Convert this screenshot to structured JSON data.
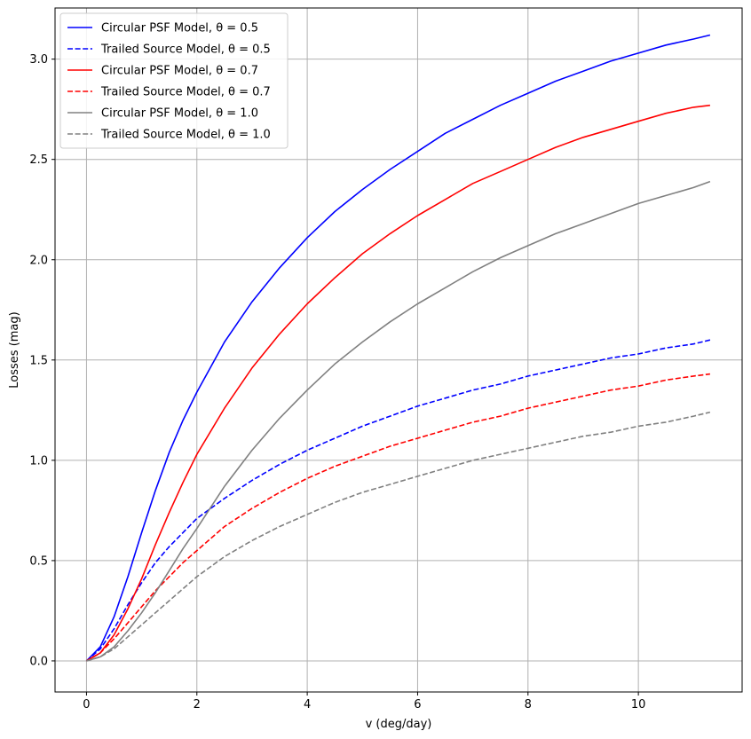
{
  "chart_data": {
    "type": "line",
    "xlabel": "v (deg/day)",
    "ylabel": "Losses (mag)",
    "xlim": [
      -0.57,
      11.88
    ],
    "ylim": [
      -0.155,
      3.255
    ],
    "xticks": [
      0,
      2,
      4,
      6,
      8,
      10
    ],
    "yticks": [
      0.0,
      0.5,
      1.0,
      1.5,
      2.0,
      2.5,
      3.0
    ],
    "xtick_labels": [
      "0",
      "2",
      "4",
      "6",
      "8",
      "10"
    ],
    "ytick_labels": [
      "0.0",
      "0.5",
      "1.0",
      "1.5",
      "2.0",
      "2.5",
      "3.0"
    ],
    "grid": true,
    "legend_position": "top-left",
    "x": [
      0,
      0.25,
      0.5,
      0.75,
      1,
      1.25,
      1.5,
      1.75,
      2,
      2.5,
      3,
      3.5,
      4,
      4.5,
      5,
      5.5,
      6,
      6.5,
      7,
      7.5,
      8,
      8.5,
      9,
      9.5,
      10,
      10.5,
      11,
      11.3
    ],
    "series": [
      {
        "name": "Circular PSF Model, θ = 0.5",
        "theta": "0.5",
        "color": "#0000ff",
        "dash": "solid",
        "values": [
          0,
          0.07,
          0.22,
          0.42,
          0.64,
          0.85,
          1.04,
          1.2,
          1.34,
          1.59,
          1.79,
          1.96,
          2.11,
          2.24,
          2.35,
          2.45,
          2.54,
          2.63,
          2.7,
          2.77,
          2.83,
          2.89,
          2.94,
          2.99,
          3.03,
          3.07,
          3.1,
          3.12
        ]
      },
      {
        "name": "Trailed Source Model, θ = 0.5",
        "theta": "0.5",
        "color": "#0000ff",
        "dash": "dashed",
        "values": [
          0,
          0.06,
          0.16,
          0.28,
          0.39,
          0.49,
          0.57,
          0.64,
          0.71,
          0.81,
          0.9,
          0.98,
          1.05,
          1.11,
          1.17,
          1.22,
          1.27,
          1.31,
          1.35,
          1.38,
          1.42,
          1.45,
          1.48,
          1.51,
          1.53,
          1.56,
          1.58,
          1.6
        ]
      },
      {
        "name": "Circular PSF Model, θ = 0.7",
        "theta": "0.7",
        "color": "#ff0000",
        "dash": "solid",
        "values": [
          0,
          0.04,
          0.13,
          0.26,
          0.41,
          0.58,
          0.74,
          0.89,
          1.03,
          1.26,
          1.46,
          1.63,
          1.78,
          1.91,
          2.03,
          2.13,
          2.22,
          2.3,
          2.38,
          2.44,
          2.5,
          2.56,
          2.61,
          2.65,
          2.69,
          2.73,
          2.76,
          2.77
        ]
      },
      {
        "name": "Trailed Source Model, θ = 0.7",
        "theta": "0.7",
        "color": "#ff0000",
        "dash": "dashed",
        "values": [
          0,
          0.04,
          0.11,
          0.19,
          0.27,
          0.35,
          0.42,
          0.49,
          0.55,
          0.67,
          0.76,
          0.84,
          0.91,
          0.97,
          1.02,
          1.07,
          1.11,
          1.15,
          1.19,
          1.22,
          1.26,
          1.29,
          1.32,
          1.35,
          1.37,
          1.4,
          1.42,
          1.43
        ]
      },
      {
        "name": "Circular PSF Model, θ = 1.0",
        "theta": "1.0",
        "color": "#808080",
        "dash": "solid",
        "values": [
          0,
          0.02,
          0.07,
          0.15,
          0.24,
          0.34,
          0.45,
          0.56,
          0.66,
          0.87,
          1.05,
          1.21,
          1.35,
          1.48,
          1.59,
          1.69,
          1.78,
          1.86,
          1.94,
          2.01,
          2.07,
          2.13,
          2.18,
          2.23,
          2.28,
          2.32,
          2.36,
          2.39
        ]
      },
      {
        "name": "Trailed Source Model, θ = 1.0",
        "theta": "1.0",
        "color": "#808080",
        "dash": "dashed",
        "values": [
          0,
          0.02,
          0.06,
          0.12,
          0.18,
          0.24,
          0.3,
          0.36,
          0.42,
          0.52,
          0.6,
          0.67,
          0.73,
          0.79,
          0.84,
          0.88,
          0.92,
          0.96,
          1.0,
          1.03,
          1.06,
          1.09,
          1.12,
          1.14,
          1.17,
          1.19,
          1.22,
          1.24
        ]
      }
    ]
  }
}
